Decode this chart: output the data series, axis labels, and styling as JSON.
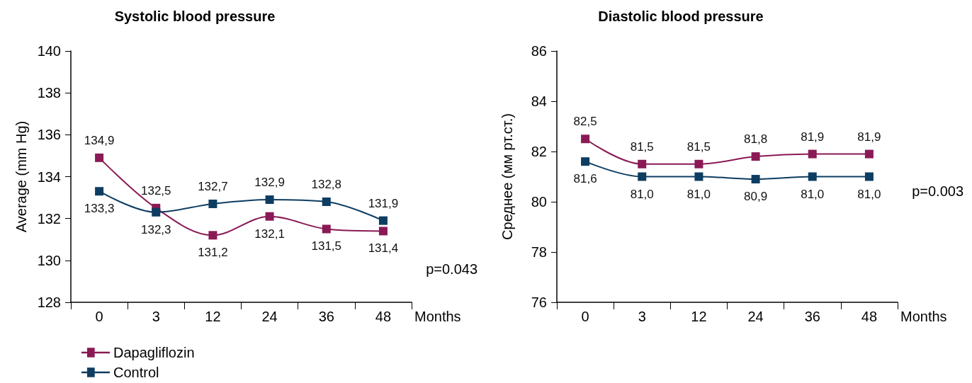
{
  "chart_data": [
    {
      "type": "line",
      "title": "Systolic blood pressure",
      "xlabel": "Months",
      "ylabel": "Average (mm Hg)",
      "categories": [
        "0",
        "3",
        "12",
        "24",
        "36",
        "48"
      ],
      "series": [
        {
          "name": "Dapagliflozin",
          "color": "#8a1a55",
          "values": [
            134.9,
            132.5,
            131.2,
            132.1,
            131.5,
            131.4
          ],
          "value_labels": [
            "134,9",
            "132,5",
            "131,2",
            "132,1",
            "131,5",
            "131,4"
          ]
        },
        {
          "name": "Control",
          "color": "#0d3d61",
          "values": [
            133.3,
            132.3,
            132.7,
            132.9,
            132.8,
            131.9
          ],
          "value_labels": [
            "133,3",
            "132,3",
            "132,7",
            "132,9",
            "132,8",
            "131,9"
          ]
        }
      ],
      "ylim": [
        128,
        140
      ],
      "yticks": [
        128,
        130,
        132,
        134,
        136,
        138,
        140
      ],
      "grid": false,
      "legend": "bottom left",
      "marker": "square",
      "line_style": "solid",
      "annotations": [
        "p=0.043"
      ]
    },
    {
      "type": "line",
      "title": "Diastolic blood pressure",
      "xlabel": "Months",
      "ylabel": "Среднее (мм рт.ст.)",
      "categories": [
        "0",
        "3",
        "12",
        "24",
        "36",
        "48"
      ],
      "series": [
        {
          "color": "#8a1a55",
          "values": [
            82.5,
            81.5,
            81.5,
            81.8,
            81.9,
            81.9
          ],
          "value_labels": [
            "82,5",
            "81,5",
            "81,5",
            "81,8",
            "81,9",
            "81,9"
          ]
        },
        {
          "color": "#0d3d61",
          "values": [
            81.6,
            81.0,
            81.0,
            80.9,
            81.0,
            81.0
          ],
          "value_labels": [
            "81,6",
            "81,0",
            "81,0",
            "80,9",
            "81,0",
            "81,0"
          ]
        }
      ],
      "ylim": [
        76,
        86
      ],
      "yticks": [
        76,
        78,
        80,
        82,
        84,
        86
      ],
      "grid": false,
      "marker": "square",
      "line_style": "solid",
      "annotations": [
        "p=0.003"
      ]
    }
  ]
}
